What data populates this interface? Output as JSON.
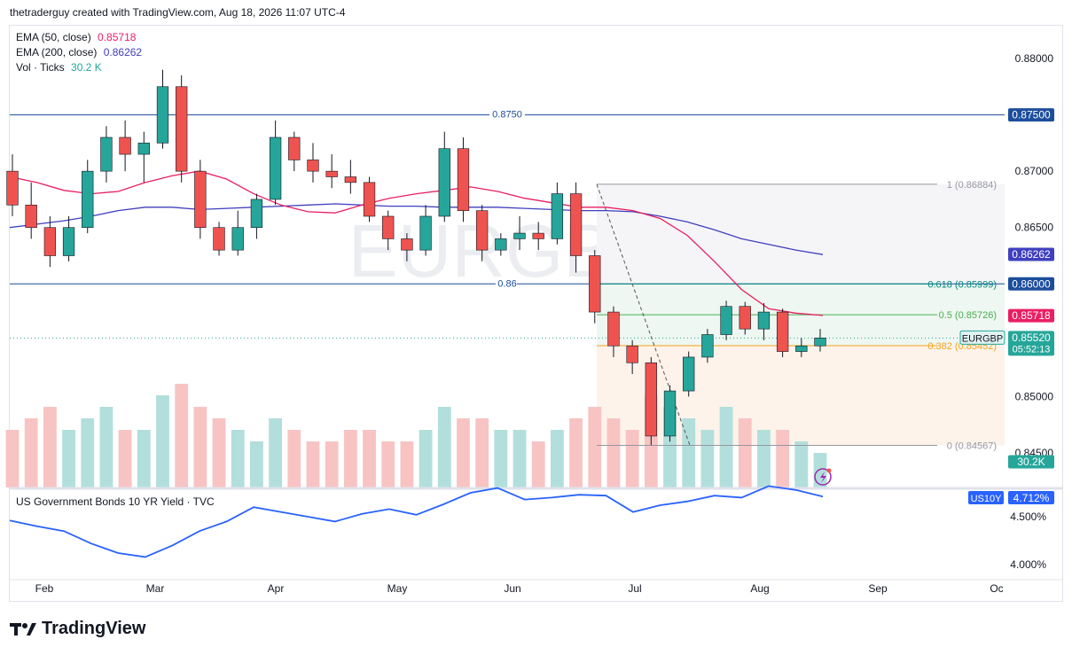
{
  "header": {
    "attribution": "thetraderguy created with TradingView.com, Aug 18, 2026 11:07 UTC-4"
  },
  "legend": {
    "ema50_label": "EMA (50, close)",
    "ema50_value": "0.85718",
    "ema200_label": "EMA (200, close)",
    "ema200_value": "0.86262",
    "vol_label": "Vol · Ticks",
    "vol_value": "30.2 K"
  },
  "watermark": "EURGBP",
  "brand": "TradingView",
  "colors": {
    "up": "#26a69a",
    "down": "#ef5350",
    "ema50": "#e91e63",
    "ema200": "#3f3fbf",
    "hline": "#1c4e9c",
    "yield": "#2962ff",
    "fib_orange": "#f7a21b",
    "fib_green": "#4caf50",
    "fib_cyan": "#00897b"
  },
  "price_axis": {
    "ticks": [
      "0.88000",
      "0.87000",
      "0.86500",
      "0.85000",
      "0.84500"
    ]
  },
  "price_tags": [
    {
      "label": "0.87500",
      "kind": "hline"
    },
    {
      "label": "0.86262",
      "kind": "ema200"
    },
    {
      "label": "0.86000",
      "kind": "hline"
    },
    {
      "label": "0.85718",
      "kind": "ema50"
    },
    {
      "label": "0.85520",
      "sub": "05:52:13",
      "kind": "last"
    },
    {
      "label": "30.2K",
      "kind": "vol"
    }
  ],
  "symbol_tag": "EURGBP",
  "hlines": [
    {
      "price": 0.875,
      "label": "0.8750"
    },
    {
      "price": 0.86,
      "label": "0.86"
    }
  ],
  "fib": [
    {
      "ratio": "1",
      "price": 0.86884,
      "label": "1 (0.86884)"
    },
    {
      "ratio": "0.618",
      "price": 0.85999,
      "label": "0.618 (0.85999)"
    },
    {
      "ratio": "0.5",
      "price": 0.85726,
      "label": "0.5 (0.85726)"
    },
    {
      "ratio": "0.382",
      "price": 0.85452,
      "label": "0.382 (0.85452)"
    },
    {
      "ratio": "0",
      "price": 0.84567,
      "label": "0 (0.84567)"
    }
  ],
  "x_axis": {
    "ticks": [
      "Feb",
      "Mar",
      "Apr",
      "May",
      "Jun",
      "Jul",
      "Aug",
      "Sep",
      "Oc"
    ]
  },
  "sub_pane": {
    "title": "US Government Bonds 10 YR Yield · TVC",
    "symbol": "US10Y",
    "value": "4.712%",
    "ticks": [
      "4.500%",
      "4.000%"
    ]
  },
  "chart_data": {
    "type": "candlestick",
    "symbol": "EURGBP",
    "timeframe": "daily",
    "last_price": 0.8552,
    "ylim": [
      0.8448,
      0.8812
    ],
    "indicators": {
      "ema50": [
        0.8695,
        0.869,
        0.8683,
        0.868,
        0.8682,
        0.869,
        0.8696,
        0.87,
        0.8693,
        0.868,
        0.867,
        0.8664,
        0.8663,
        0.867,
        0.8676,
        0.868,
        0.8683,
        0.8686,
        0.8682,
        0.8676,
        0.8672,
        0.8668,
        0.8668,
        0.8665,
        0.8658,
        0.8643,
        0.862,
        0.8595,
        0.8578,
        0.8574,
        0.8572
      ],
      "ema200": [
        0.865,
        0.8653,
        0.8656,
        0.866,
        0.8665,
        0.8668,
        0.8668,
        0.8666,
        0.8667,
        0.8668,
        0.8669,
        0.867,
        0.8671,
        0.867,
        0.8669,
        0.8669,
        0.8668,
        0.8668,
        0.8668,
        0.8667,
        0.8666,
        0.8665,
        0.8665,
        0.8664,
        0.866,
        0.8655,
        0.8648,
        0.864,
        0.8635,
        0.863,
        0.8626
      ],
      "us10y": [
        4.46,
        4.4,
        4.35,
        4.22,
        4.12,
        4.08,
        4.2,
        4.35,
        4.45,
        4.6,
        4.55,
        4.5,
        4.45,
        4.53,
        4.58,
        4.52,
        4.63,
        4.75,
        4.8,
        4.68,
        4.7,
        4.73,
        4.72,
        4.55,
        4.62,
        4.66,
        4.72,
        4.7,
        4.82,
        4.78,
        4.71
      ]
    },
    "candles": [
      [
        0.87,
        0.8715,
        0.866,
        0.867,
        0.5
      ],
      [
        0.867,
        0.869,
        0.864,
        0.865,
        0.6
      ],
      [
        0.865,
        0.866,
        0.8615,
        0.8625,
        0.7
      ],
      [
        0.8625,
        0.866,
        0.862,
        0.865,
        0.5
      ],
      [
        0.865,
        0.871,
        0.8645,
        0.87,
        0.6
      ],
      [
        0.87,
        0.874,
        0.869,
        0.873,
        0.7
      ],
      [
        0.873,
        0.8745,
        0.87,
        0.8715,
        0.5
      ],
      [
        0.8715,
        0.8735,
        0.869,
        0.8725,
        0.5
      ],
      [
        0.8725,
        0.879,
        0.872,
        0.8775,
        0.8
      ],
      [
        0.8775,
        0.8785,
        0.869,
        0.87,
        0.9
      ],
      [
        0.87,
        0.871,
        0.864,
        0.865,
        0.7
      ],
      [
        0.865,
        0.8655,
        0.8625,
        0.863,
        0.6
      ],
      [
        0.863,
        0.8665,
        0.8625,
        0.865,
        0.5
      ],
      [
        0.865,
        0.868,
        0.864,
        0.8675,
        0.4
      ],
      [
        0.8675,
        0.8745,
        0.867,
        0.873,
        0.6
      ],
      [
        0.873,
        0.8735,
        0.87,
        0.871,
        0.5
      ],
      [
        0.871,
        0.8725,
        0.869,
        0.87,
        0.4
      ],
      [
        0.87,
        0.8715,
        0.8685,
        0.8695,
        0.4
      ],
      [
        0.8695,
        0.871,
        0.868,
        0.869,
        0.5
      ],
      [
        0.869,
        0.8695,
        0.8655,
        0.866,
        0.5
      ],
      [
        0.866,
        0.8665,
        0.863,
        0.864,
        0.4
      ],
      [
        0.864,
        0.8645,
        0.862,
        0.863,
        0.4
      ],
      [
        0.863,
        0.867,
        0.8625,
        0.866,
        0.5
      ],
      [
        0.866,
        0.8735,
        0.8655,
        0.872,
        0.7
      ],
      [
        0.872,
        0.873,
        0.8655,
        0.8665,
        0.6
      ],
      [
        0.8665,
        0.867,
        0.862,
        0.863,
        0.6
      ],
      [
        0.863,
        0.8645,
        0.8625,
        0.864,
        0.5
      ],
      [
        0.864,
        0.866,
        0.863,
        0.8645,
        0.5
      ],
      [
        0.8645,
        0.8655,
        0.863,
        0.864,
        0.4
      ],
      [
        0.864,
        0.869,
        0.8635,
        0.868,
        0.5
      ],
      [
        0.868,
        0.869,
        0.861,
        0.8625,
        0.6
      ],
      [
        0.8625,
        0.863,
        0.8565,
        0.8575,
        0.7
      ],
      [
        0.8575,
        0.858,
        0.8535,
        0.8545,
        0.6
      ],
      [
        0.8545,
        0.855,
        0.852,
        0.853,
        0.5
      ],
      [
        0.853,
        0.8535,
        0.8457,
        0.8465,
        0.8
      ],
      [
        0.8465,
        0.851,
        0.846,
        0.8505,
        0.7
      ],
      [
        0.8505,
        0.854,
        0.85,
        0.8535,
        0.6
      ],
      [
        0.8535,
        0.856,
        0.853,
        0.8555,
        0.5
      ],
      [
        0.8555,
        0.8585,
        0.855,
        0.858,
        0.7
      ],
      [
        0.858,
        0.8584,
        0.8555,
        0.856,
        0.6
      ],
      [
        0.856,
        0.8583,
        0.855,
        0.8575,
        0.5
      ],
      [
        0.8575,
        0.8578,
        0.8535,
        0.854,
        0.5
      ],
      [
        0.854,
        0.8552,
        0.8535,
        0.8545,
        0.4
      ],
      [
        0.8545,
        0.856,
        0.854,
        0.8552,
        0.3
      ]
    ]
  }
}
